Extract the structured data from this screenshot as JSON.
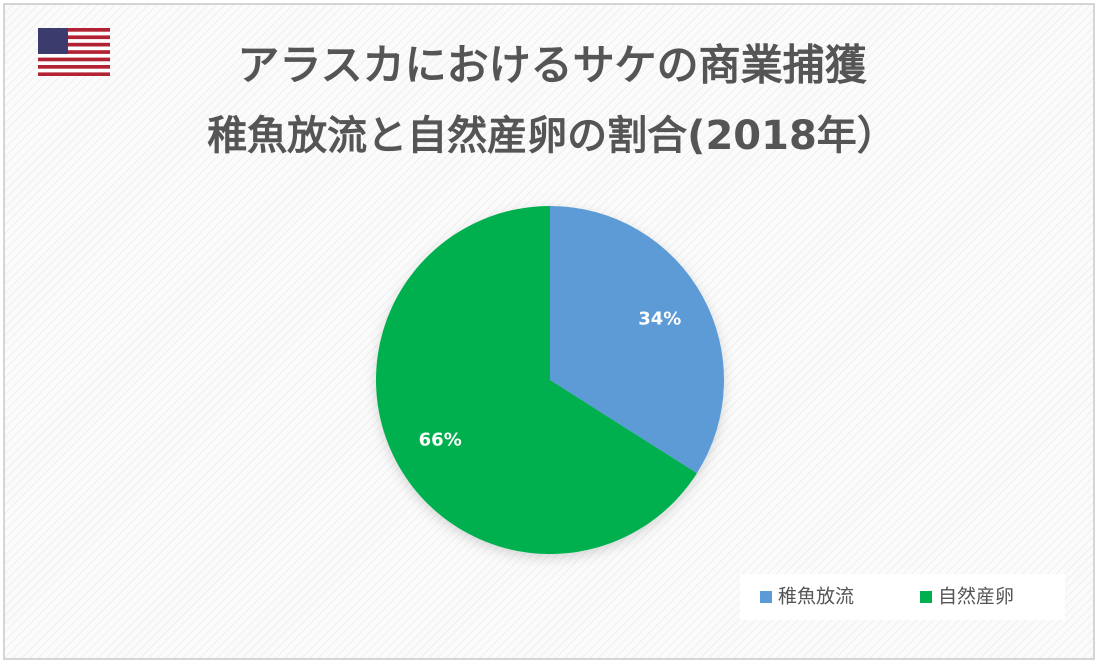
{
  "chart_data": {
    "type": "pie",
    "title_lines": [
      "アラスカにおけるサケの商業捕獲",
      "稚魚放流と自然産卵の割合(2018年）"
    ],
    "categories": [
      "稚魚放流",
      "自然産卵"
    ],
    "values": [
      34,
      66
    ],
    "value_labels": [
      "34%",
      "66%"
    ],
    "colors": [
      "#5b9bd5",
      "#00b050"
    ],
    "legend": "bottom-right"
  }
}
